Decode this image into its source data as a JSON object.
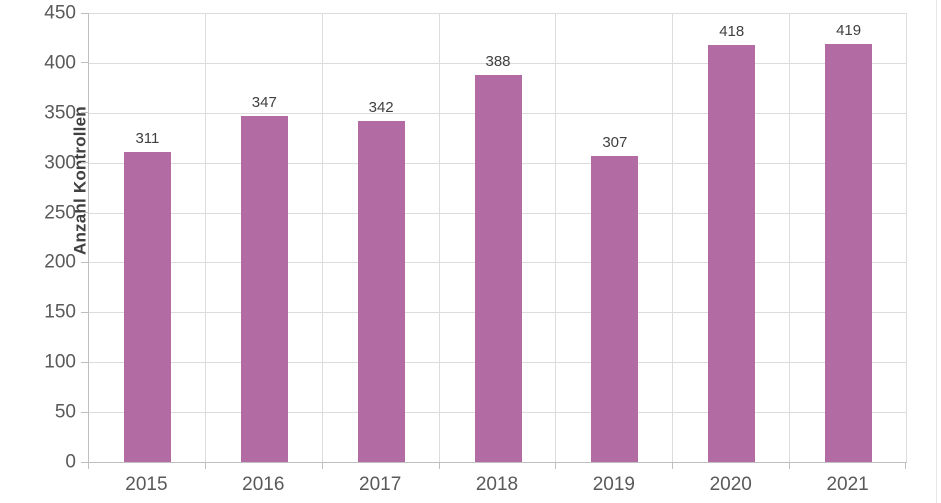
{
  "chart_data": {
    "type": "bar",
    "title": "",
    "categories": [
      "2015",
      "2016",
      "2017",
      "2018",
      "2019",
      "2020",
      "2021"
    ],
    "values": [
      311,
      347,
      342,
      388,
      307,
      418,
      419
    ],
    "data_labels": [
      "311",
      "347",
      "342",
      "388",
      "307",
      "418",
      "419"
    ],
    "xlabel": "",
    "ylabel": "Anzahl Kontrollen",
    "ylim": [
      0,
      450
    ],
    "yticks": [
      0,
      50,
      100,
      150,
      200,
      250,
      300,
      350,
      400,
      450
    ],
    "grid": "both",
    "legend_position": "none"
  },
  "colors": {
    "bar": "#B26BA3",
    "gridline": "#DCDCDC",
    "axis_line": "#BFBFBF",
    "tick_label": "#595959",
    "data_label": "#404040",
    "axis_title": "#404040",
    "background": "#FFFFFF"
  }
}
